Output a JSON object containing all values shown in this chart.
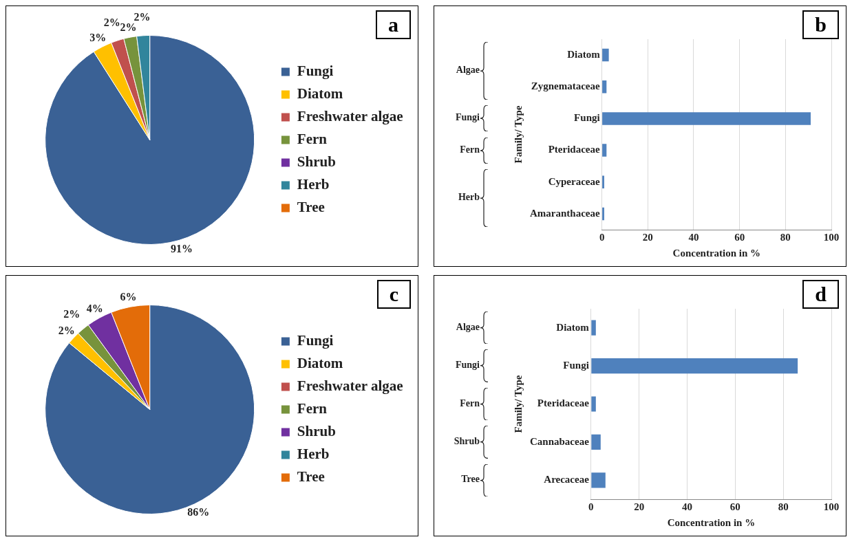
{
  "chart_data": [
    {
      "type": "pie",
      "title": "a",
      "categories": [
        "Fungi",
        "Diatom",
        "Freshwater algae",
        "Fern",
        "Shrub",
        "Herb",
        "Tree"
      ],
      "values": [
        91,
        3,
        2,
        2,
        0,
        2,
        0
      ],
      "colors": [
        "#3a6195",
        "#ffc000",
        "#c0504d",
        "#77933c",
        "#7030a0",
        "#31859c",
        "#e36c09"
      ],
      "value_labels": [
        "91%",
        "3%",
        "2%",
        "2%",
        null,
        "2%",
        null
      ],
      "legend": "right"
    },
    {
      "type": "bar",
      "orientation": "horizontal",
      "title": "b",
      "categories": [
        "Diatom",
        "Zygnemataceae",
        "Fungi",
        "Pteridaceae",
        "Cyperaceae",
        "Amaranthaceae"
      ],
      "values": [
        3,
        2,
        91,
        2,
        1,
        1
      ],
      "color": "#4f81bd",
      "xlim": [
        0,
        100
      ],
      "xticks": [
        0,
        20,
        40,
        60,
        80,
        100
      ],
      "xlabel": "Concentration in %",
      "ylabel": "Family/ Type",
      "grid": "x",
      "annotations": [
        "Algae",
        "Fungi",
        "Fern",
        "Herb"
      ]
    },
    {
      "type": "pie",
      "title": "c",
      "categories": [
        "Fungi",
        "Diatom",
        "Freshwater algae",
        "Fern",
        "Shrub",
        "Herb",
        "Tree"
      ],
      "values": [
        86,
        2,
        0,
        2,
        4,
        0,
        6
      ],
      "colors": [
        "#3a6195",
        "#ffc000",
        "#c0504d",
        "#77933c",
        "#7030a0",
        "#31859c",
        "#e36c09"
      ],
      "value_labels": [
        "86%",
        "2%",
        null,
        "2%",
        "4%",
        null,
        "6%"
      ],
      "legend": "right"
    },
    {
      "type": "bar",
      "orientation": "horizontal",
      "title": "d",
      "categories": [
        "Diatom",
        "Fungi",
        "Pteridaceae",
        "Cannabaceae",
        "Arecaceae"
      ],
      "values": [
        2,
        86,
        2,
        4,
        6
      ],
      "color": "#4f81bd",
      "xlim": [
        0,
        100
      ],
      "xticks": [
        0,
        20,
        40,
        60,
        80,
        100
      ],
      "xlabel": "Concentration in %",
      "ylabel": "Family/ Type",
      "grid": "x",
      "annotations": [
        "Algae",
        "Fungi",
        "Fern",
        "Shrub",
        "Tree"
      ]
    }
  ]
}
